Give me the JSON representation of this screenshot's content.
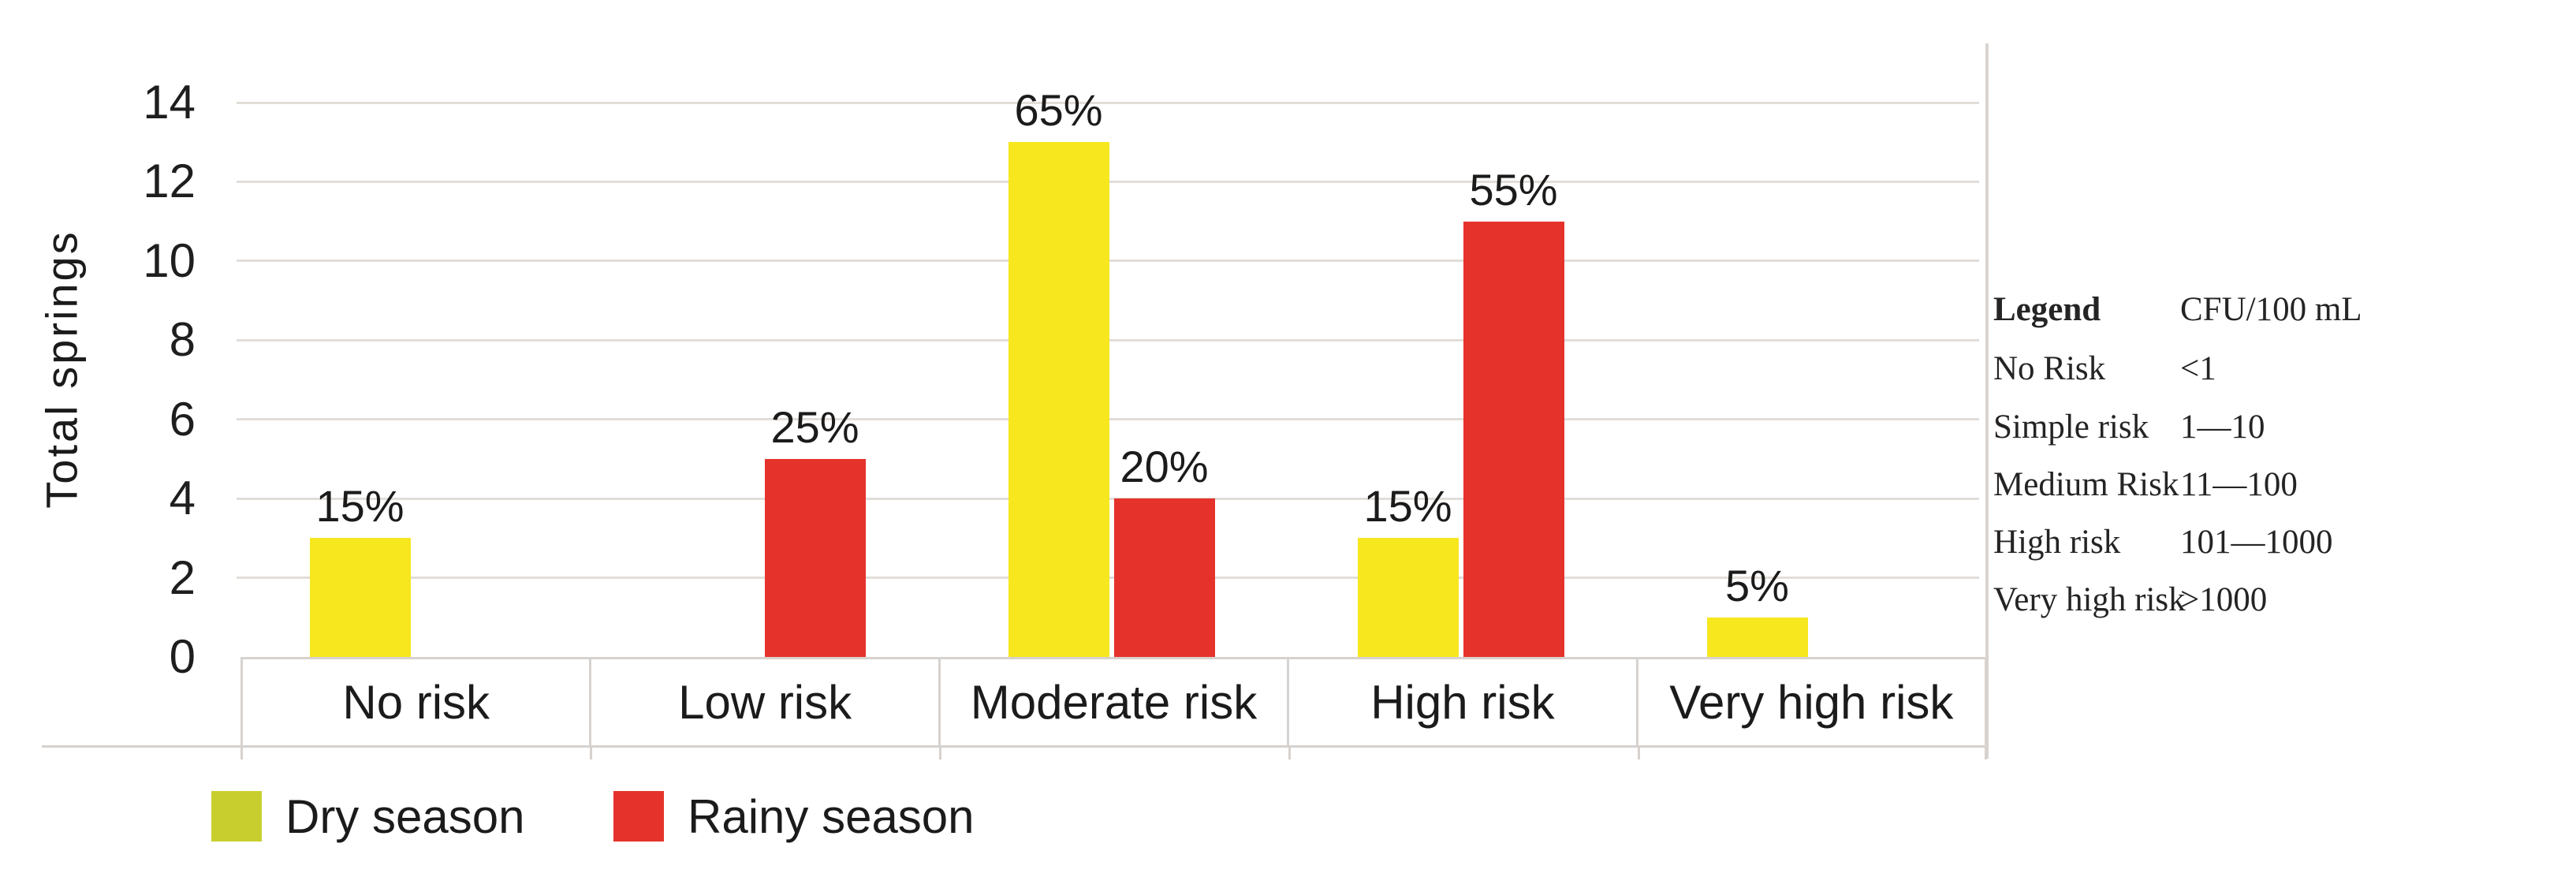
{
  "chart_data": {
    "type": "bar",
    "title": "",
    "xlabel": "",
    "ylabel": "Total springs",
    "ylim": [
      0,
      14
    ],
    "yticks": [
      0,
      2,
      4,
      6,
      8,
      10,
      12,
      14
    ],
    "grid": "horizontal",
    "legend_position": "bottom",
    "categories": [
      "No risk",
      "Low risk",
      "Moderate risk",
      "High risk",
      "Very high risk"
    ],
    "series": [
      {
        "name": "Dry season",
        "bar_color": "#f6e71f",
        "legend_color": "#c9ce2f",
        "values": [
          3,
          null,
          13,
          3,
          1
        ],
        "data_labels": [
          "15%",
          null,
          "65%",
          "15%",
          "5%"
        ]
      },
      {
        "name": "Rainy season",
        "bar_color": "#e5332c",
        "legend_color": "#e5332c",
        "values": [
          null,
          5,
          4,
          11,
          null
        ],
        "data_labels": [
          null,
          "25%",
          "20%",
          "55%",
          null
        ]
      }
    ]
  },
  "season_legend": {
    "items": [
      {
        "label": "Dry season",
        "color": "#c9ce2f"
      },
      {
        "label": "Rainy season",
        "color": "#e5332c"
      }
    ]
  },
  "risk_table": {
    "header": {
      "col1": "Legend",
      "col2": "CFU/100 mL"
    },
    "rows": [
      {
        "col1": "No Risk",
        "col2": "<1"
      },
      {
        "col1": "Simple risk",
        "col2": "1—10"
      },
      {
        "col1": "Medium Risk",
        "col2": "11—100"
      },
      {
        "col1": "High risk",
        "col2": "101—1000"
      },
      {
        "col1": "Very high risk",
        "col2": ">1000"
      }
    ]
  },
  "colors": {
    "dry_bar": "#f6e71f",
    "rainy_bar": "#e5332c",
    "dry_legend_swatch": "#c9ce2f",
    "gridline": "#e2ddd8",
    "table_border": "#d7d2ce",
    "text": "#1e1e1e",
    "background": "#ffffff"
  }
}
